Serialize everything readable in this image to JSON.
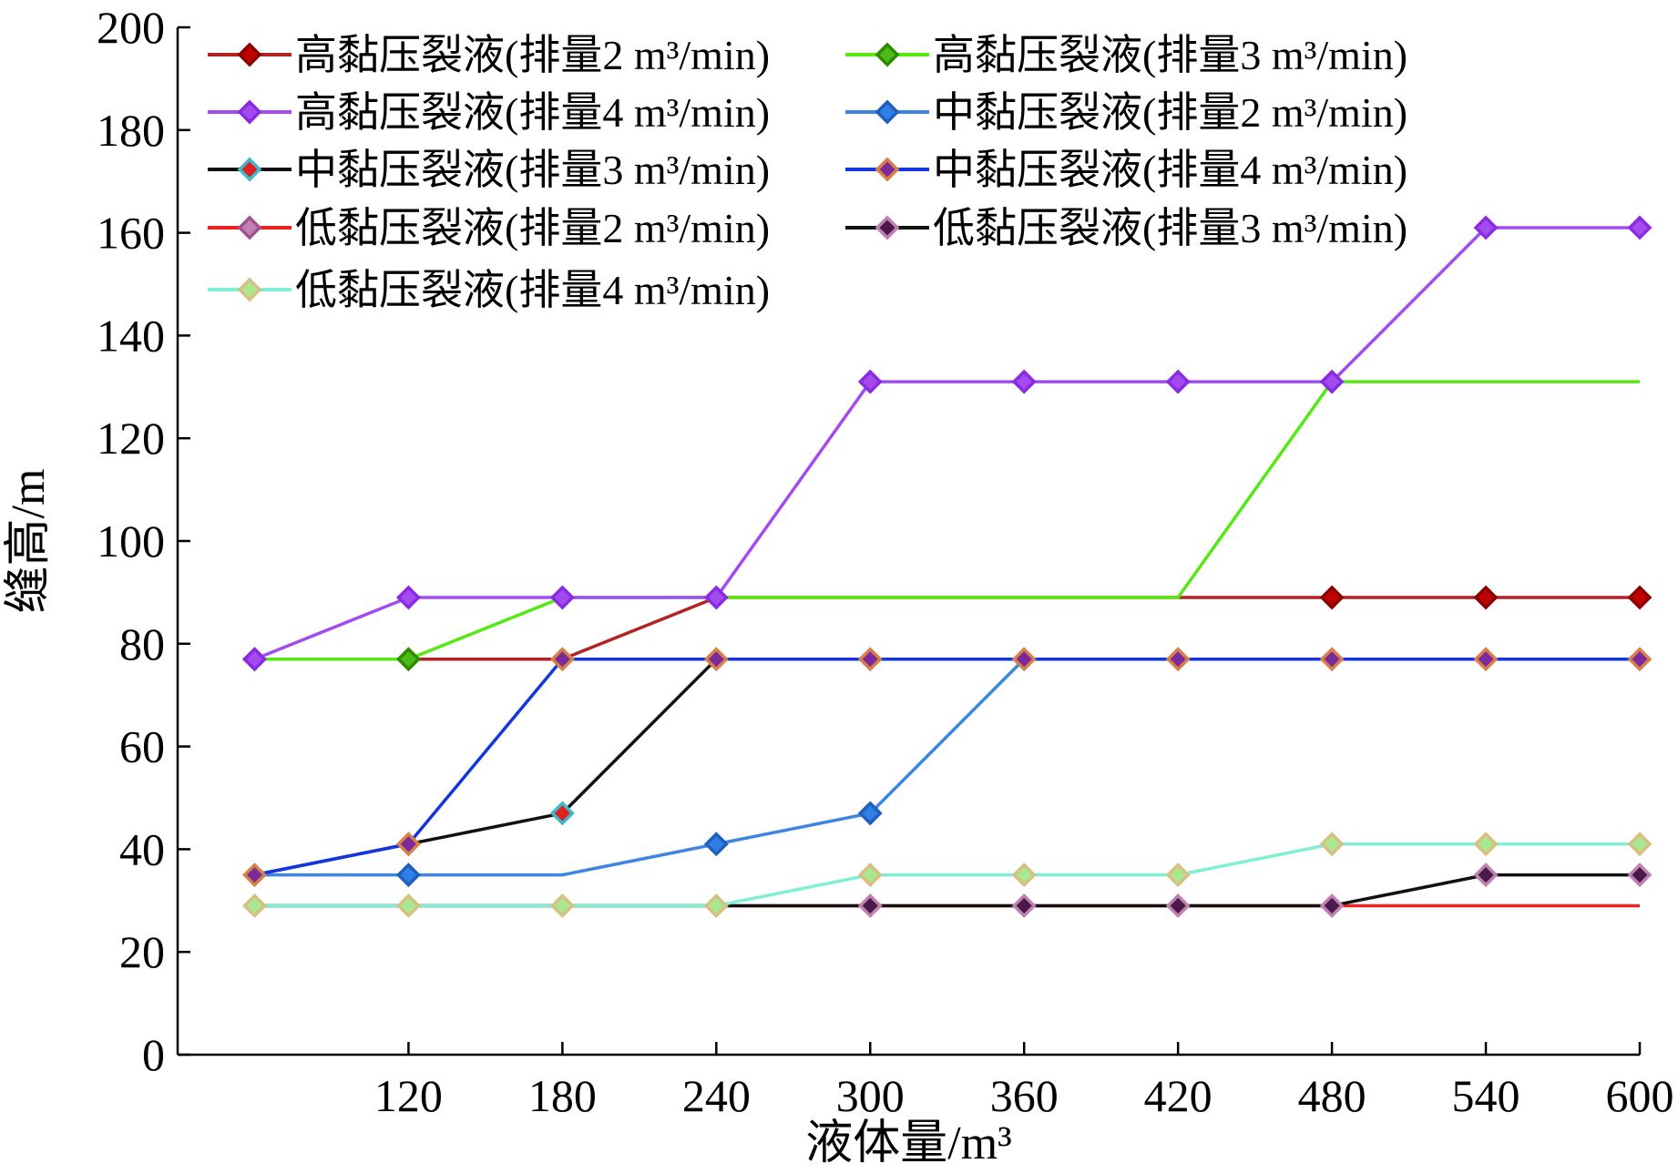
{
  "chart_data": {
    "type": "line",
    "title": "",
    "xlabel": "液体量/m³",
    "ylabel": "缝高/m",
    "x": [
      60,
      120,
      180,
      240,
      300,
      360,
      420,
      480,
      540,
      600
    ],
    "xticks": [
      "120",
      "180",
      "240",
      "300",
      "360",
      "420",
      "480",
      "540",
      "600"
    ],
    "xtick_values": [
      120,
      180,
      240,
      300,
      360,
      420,
      480,
      540,
      600
    ],
    "yticks": [
      "0",
      "20",
      "40",
      "60",
      "80",
      "100",
      "120",
      "140",
      "160",
      "180",
      "200"
    ],
    "ylim": [
      0,
      200
    ],
    "xlim": [
      30,
      600
    ],
    "grid": false,
    "legend_position": "top-left",
    "series": [
      {
        "name": "高黏压裂液(排量2 m³/min)",
        "color": "#b22222",
        "marker_fill": "#c00000",
        "marker_stroke": "#8b0000",
        "markers": [
          1,
          0,
          0,
          0,
          0,
          0,
          0,
          1,
          1,
          1
        ],
        "values": [
          77,
          77,
          77,
          89,
          89,
          89,
          89,
          89,
          89,
          89
        ]
      },
      {
        "name": "高黏压裂液(排量3 m³/min)",
        "color": "#55e812",
        "marker_fill": "#4cbb17",
        "marker_stroke": "#2e8b00",
        "markers": [
          0,
          1,
          0,
          0,
          0,
          0,
          0,
          0,
          0,
          0
        ],
        "values": [
          77,
          77,
          89,
          89,
          89,
          89,
          89,
          131,
          131,
          131
        ]
      },
      {
        "name": "高黏压裂液(排量4 m³/min)",
        "color": "#a24cf0",
        "marker_fill": "#a24cf0",
        "marker_stroke": "#8a2be2",
        "markers": [
          1,
          1,
          1,
          1,
          1,
          1,
          1,
          1,
          1,
          1
        ],
        "values": [
          77,
          89,
          89,
          89,
          131,
          131,
          131,
          131,
          161,
          161
        ]
      },
      {
        "name": "中黏压裂液(排量2 m³/min)",
        "color": "#3d85e0",
        "marker_fill": "#2f7fe6",
        "marker_stroke": "#1f5fbf",
        "markers": [
          0,
          1,
          0,
          1,
          1,
          0,
          0,
          0,
          0,
          0
        ],
        "values": [
          35,
          35,
          35,
          41,
          47,
          77,
          77,
          77,
          77,
          77
        ]
      },
      {
        "name": "中黏压裂液(排量3 m³/min)",
        "color": "#111111",
        "marker_fill": "#e02020",
        "marker_stroke": "#40b8c8",
        "markers": [
          0,
          0,
          1,
          0,
          0,
          0,
          0,
          0,
          0,
          0
        ],
        "values": [
          35,
          41,
          47,
          77,
          77,
          77,
          77,
          77,
          77,
          77
        ]
      },
      {
        "name": "中黏压裂液(排量4 m³/min)",
        "color": "#1436e0",
        "marker_fill": "#7a2a9a",
        "marker_stroke": "#d8804a",
        "markers": [
          1,
          1,
          1,
          1,
          1,
          1,
          1,
          1,
          1,
          1
        ],
        "values": [
          35,
          41,
          77,
          77,
          77,
          77,
          77,
          77,
          77,
          77
        ]
      },
      {
        "name": "低黏压裂液(排量2 m³/min)",
        "color": "#f02020",
        "marker_fill": "#c080b0",
        "marker_stroke": "#a05090",
        "markers": [
          0,
          0,
          0,
          0,
          0,
          0,
          0,
          0,
          0,
          0
        ],
        "values": [
          29,
          29,
          29,
          29,
          29,
          29,
          29,
          29,
          29,
          29
        ]
      },
      {
        "name": "低黏压裂液(排量3 m³/min)",
        "color": "#111111",
        "marker_fill": "#4a1a4a",
        "marker_stroke": "#c080b0",
        "markers": [
          0,
          0,
          0,
          0,
          1,
          1,
          1,
          1,
          1,
          1
        ],
        "values": [
          29,
          29,
          29,
          29,
          29,
          29,
          29,
          29,
          35,
          35
        ]
      },
      {
        "name": "低黏压裂液(排量4 m³/min)",
        "color": "#7ff0d4",
        "marker_fill": "#a8e890",
        "marker_stroke": "#d8c080",
        "markers": [
          1,
          1,
          1,
          1,
          1,
          1,
          1,
          1,
          1,
          1
        ],
        "values": [
          29,
          29,
          29,
          29,
          35,
          35,
          35,
          41,
          41,
          41
        ]
      }
    ]
  }
}
